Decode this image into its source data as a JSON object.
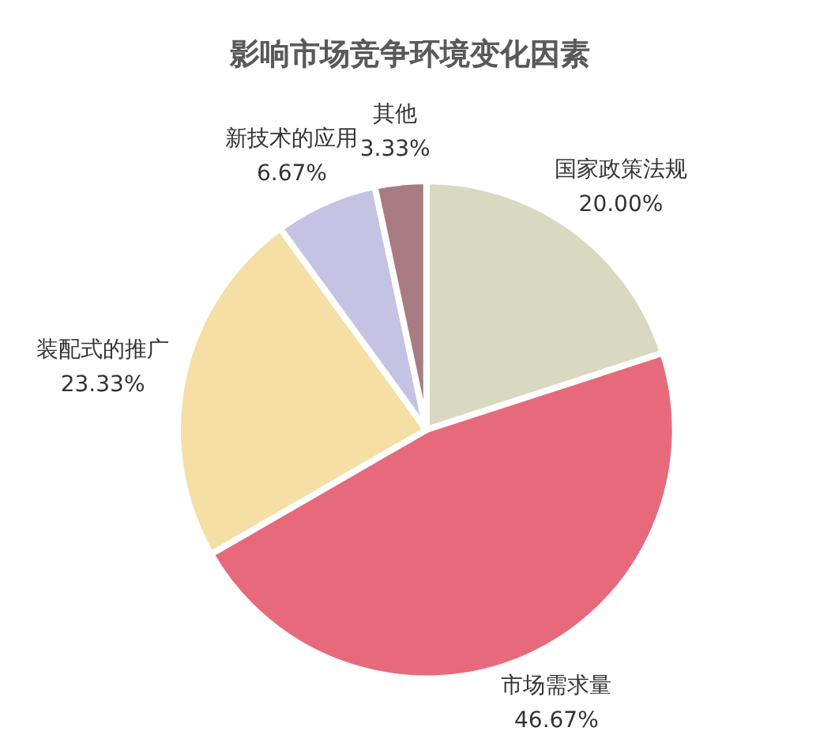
{
  "chart_data": {
    "type": "pie",
    "title": "影响市场竞争环境变化因素",
    "categories": [
      "国家政策法规",
      "市场需求量",
      "装配式的推广",
      "新技术的应用",
      "其他"
    ],
    "values": [
      20.0,
      46.67,
      23.33,
      6.67,
      3.33
    ],
    "value_labels": [
      "20.00%",
      "46.67%",
      "23.33%",
      "6.67%",
      "3.33%"
    ],
    "colors": [
      "#d8d9c0",
      "#e66a7c",
      "#f5dfa5",
      "#c5c3e3",
      "#a87b82"
    ],
    "legend": false
  }
}
